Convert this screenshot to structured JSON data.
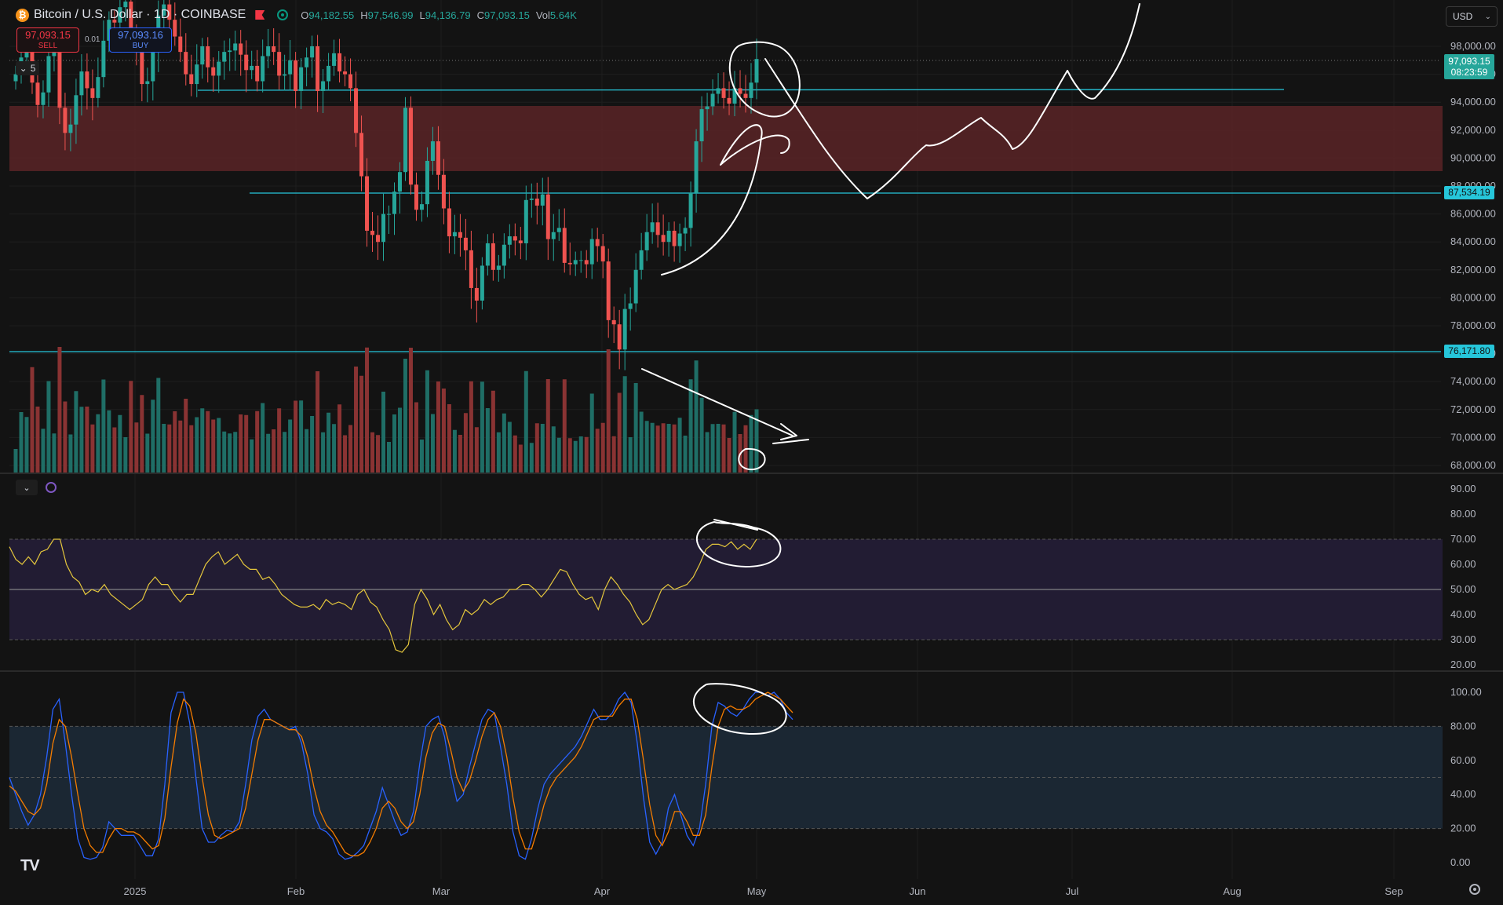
{
  "header": {
    "logo_letter": "₿",
    "title": "Bitcoin / U.S. Dollar · 1D · COINBASE",
    "ohlc": [
      {
        "k": "O",
        "v": "94,182.55"
      },
      {
        "k": "H",
        "v": "97,546.99"
      },
      {
        "k": "L",
        "v": "94,136.79"
      },
      {
        "k": "C",
        "v": "97,093.15"
      },
      {
        "k": "Vol",
        "v": "5.64K"
      }
    ]
  },
  "trade": {
    "sell_price": "97,093.15",
    "sell_label": "SELL",
    "buy_price": "97,093.16",
    "buy_label": "BUY",
    "spread": "0.01",
    "collapse_count": "5"
  },
  "currency": "USD",
  "price_tags": {
    "last_price": "97,093.15",
    "countdown": "08:23:59",
    "line_1": "87,534.19",
    "line_2": "76,171.80"
  },
  "colors": {
    "up": "#26a69a",
    "down": "#ef5350",
    "hline": "#26c6da",
    "zone": "#5b2527",
    "rsi": "#e5c73c",
    "stoch_k": "#2962ff",
    "stoch_d": "#f57c00"
  },
  "chart_data": [
    {
      "type": "candlestick",
      "title": "Bitcoin / U.S. Dollar · 1D · COINBASE",
      "ylim": [
        67000,
        101000
      ],
      "y_ticks": [
        68000,
        70000,
        72000,
        74000,
        76000,
        78000,
        80000,
        82000,
        84000,
        86000,
        88000,
        90000,
        92000,
        94000,
        96000,
        98000
      ],
      "x_labels": [
        "2025",
        "Feb",
        "Mar",
        "Apr",
        "May",
        "Jun",
        "Jul",
        "Aug",
        "Sep"
      ],
      "close_series": [
        96000,
        97200,
        98500,
        95400,
        93800,
        94700,
        97300,
        97800,
        93600,
        91800,
        92400,
        94500,
        96200,
        95000,
        94300,
        95800,
        98400,
        99900,
        99700,
        100800,
        101200,
        98700,
        97800,
        95300,
        95500,
        97600,
        100200,
        101000,
        99900,
        98700,
        97600,
        96000,
        95300,
        96700,
        98000,
        96500,
        95900,
        96900,
        97600,
        97700,
        98200,
        97400,
        96300,
        96600,
        95500,
        97300,
        98000,
        97600,
        95900,
        96000,
        97000,
        94800,
        96500,
        97200,
        98000,
        94800,
        95500,
        96600,
        97500,
        96200,
        96000,
        95000,
        91800,
        88700,
        84800,
        84500,
        84000,
        86000,
        86000,
        87600,
        89000,
        93600,
        88100,
        86300,
        86700,
        89800,
        91200,
        88800,
        86400,
        84400,
        84700,
        84300,
        83400,
        80700,
        79800,
        82300,
        83900,
        82000,
        82300,
        83800,
        84400,
        84100,
        83900,
        87000,
        87100,
        86600,
        87400,
        84200,
        84700,
        85000,
        82500,
        82400,
        82700,
        82700,
        82400,
        84200,
        83700,
        82600,
        78400,
        78100,
        76300,
        79200,
        79600,
        82000,
        83400,
        84700,
        85400,
        84500,
        84000,
        84800,
        83700,
        84600,
        85000,
        87500,
        91200,
        93500,
        93700,
        94600,
        95000,
        94300,
        93900,
        95000,
        94600,
        94300,
        95400,
        97093
      ]
    },
    {
      "type": "bar",
      "title": "Volume",
      "note": "relative volume overlay on price pane"
    },
    {
      "type": "line",
      "title": "RSI",
      "ylim": [
        20,
        90
      ],
      "y_ticks": [
        20,
        30,
        40,
        50,
        60,
        70,
        80,
        90
      ],
      "bands": {
        "upper": 70,
        "middle": 50,
        "lower": 30
      },
      "series": [
        {
          "name": "",
          "values": [
            67,
            62,
            60,
            63,
            60,
            65,
            66,
            70,
            70,
            60,
            55,
            53,
            48,
            50,
            49,
            52,
            48,
            46,
            44,
            42,
            44,
            46,
            52,
            55,
            52,
            52,
            48,
            45,
            48,
            48,
            54,
            60,
            63,
            65,
            60,
            62,
            64,
            60,
            58,
            58,
            54,
            55,
            52,
            48,
            46,
            44,
            43,
            43,
            44,
            42,
            46,
            44,
            45,
            44,
            42,
            48,
            50,
            45,
            43,
            38,
            34,
            26,
            25,
            28,
            44,
            50,
            46,
            40,
            44,
            38,
            34,
            36,
            42,
            40,
            42,
            46,
            44,
            46,
            47,
            50,
            50,
            52,
            52,
            50,
            47,
            50,
            54,
            58,
            57,
            52,
            48,
            46,
            47,
            42,
            50,
            55,
            52,
            48,
            45,
            40,
            36,
            38,
            44,
            50,
            52,
            50,
            51,
            52,
            55,
            60,
            66,
            68,
            68,
            67,
            69,
            66,
            68,
            66,
            70
          ]
        }
      ]
    },
    {
      "type": "line",
      "title": "Stoch RSI",
      "ylim": [
        0,
        100
      ],
      "y_ticks": [
        0,
        20,
        40,
        60,
        80,
        100
      ],
      "bands": {
        "upper": 80,
        "middle": 50,
        "lower": 20
      },
      "series": [
        {
          "name": "",
          "values": [
            50,
            40,
            30,
            22,
            28,
            40,
            62,
            90,
            96,
            70,
            40,
            14,
            3,
            2,
            3,
            9,
            24,
            20,
            16,
            16,
            16,
            10,
            4,
            4,
            14,
            46,
            88,
            100,
            100,
            82,
            50,
            20,
            12,
            12,
            16,
            19,
            18,
            24,
            46,
            72,
            86,
            90,
            84,
            82,
            80,
            78,
            80,
            70,
            52,
            28,
            20,
            18,
            14,
            5,
            2,
            3,
            6,
            10,
            20,
            30,
            44,
            34,
            24,
            16,
            18,
            30,
            58,
            80,
            84,
            86,
            74,
            52,
            36,
            40,
            56,
            70,
            84,
            90,
            88,
            68,
            46,
            18,
            4,
            2,
            14,
            32,
            46,
            52,
            56,
            60,
            64,
            68,
            74,
            82,
            90,
            84,
            84,
            88,
            96,
            100,
            94,
            70,
            38,
            12,
            5,
            12,
            32,
            40,
            28,
            16,
            10,
            20,
            46,
            80,
            94,
            92,
            88,
            86,
            90,
            96,
            100,
            100,
            98,
            100,
            96,
            88,
            84
          ]
        },
        {
          "name": "",
          "values": [
            45,
            42,
            36,
            30,
            28,
            32,
            46,
            70,
            84,
            80,
            62,
            40,
            20,
            10,
            6,
            6,
            14,
            20,
            20,
            18,
            18,
            16,
            12,
            8,
            10,
            26,
            56,
            82,
            96,
            92,
            76,
            50,
            28,
            16,
            14,
            16,
            18,
            20,
            32,
            52,
            72,
            84,
            84,
            82,
            80,
            78,
            78,
            74,
            62,
            44,
            30,
            22,
            18,
            12,
            6,
            4,
            4,
            6,
            12,
            20,
            32,
            36,
            32,
            24,
            20,
            24,
            40,
            62,
            76,
            82,
            80,
            66,
            50,
            42,
            48,
            60,
            74,
            84,
            88,
            80,
            62,
            38,
            18,
            8,
            8,
            20,
            34,
            44,
            50,
            54,
            58,
            62,
            68,
            76,
            84,
            86,
            86,
            86,
            92,
            96,
            96,
            84,
            60,
            34,
            16,
            10,
            18,
            30,
            30,
            24,
            16,
            16,
            28,
            56,
            80,
            90,
            92,
            90,
            90,
            92,
            96,
            98,
            100,
            98,
            96,
            92,
            88
          ]
        }
      ]
    }
  ]
}
